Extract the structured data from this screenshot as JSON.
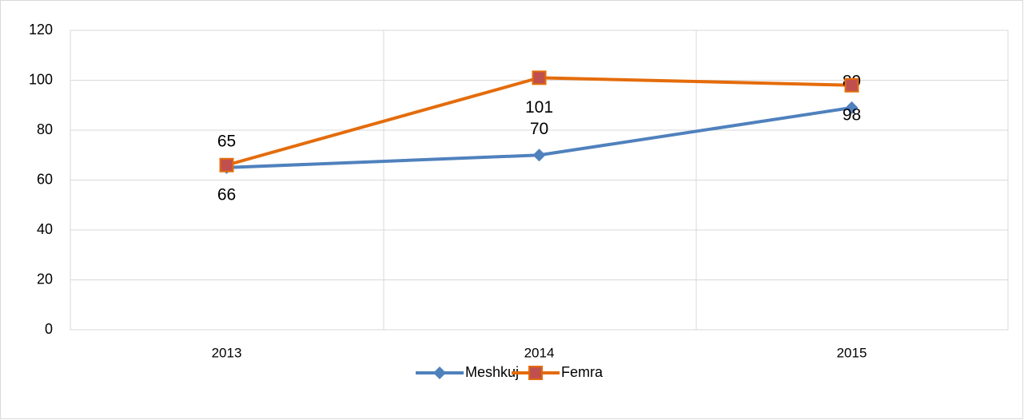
{
  "chart_data": {
    "type": "line",
    "categories": [
      "2013",
      "2014",
      "2015"
    ],
    "series": [
      {
        "name": "Meshkuj",
        "color": "#4f81bd",
        "values": [
          65,
          70,
          89
        ]
      },
      {
        "name": "Femra",
        "color": "#e46c0a",
        "values": [
          66,
          101,
          98
        ]
      }
    ],
    "ylim": [
      0,
      120
    ],
    "yticks": [
      0,
      20,
      40,
      60,
      80,
      100,
      120
    ],
    "grid": true,
    "legend": "bottom"
  }
}
